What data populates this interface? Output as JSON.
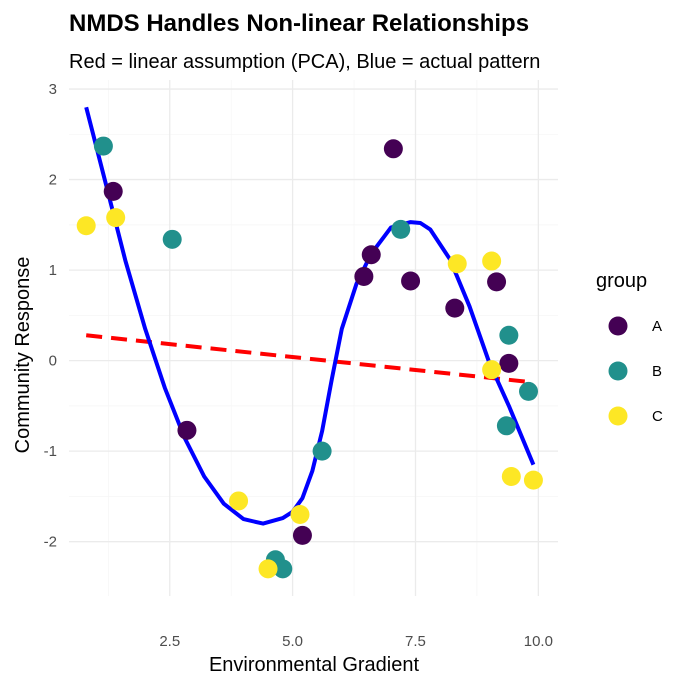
{
  "chart_data": {
    "type": "scatter",
    "title": "NMDS Handles Non-linear Relationships",
    "subtitle": "Red = linear assumption (PCA), Blue = actual pattern",
    "xlabel": "Environmental Gradient",
    "ylabel": "Community Response",
    "xlim": [
      0.45,
      10.4
    ],
    "ylim": [
      -2.6,
      3.1
    ],
    "x_ticks": [
      2.5,
      5.0,
      7.5,
      10.0
    ],
    "x_tick_labels": [
      "2.5",
      "5.0",
      "7.5",
      "10.0"
    ],
    "y_ticks": [
      -2,
      -1,
      0,
      1,
      2,
      3
    ],
    "y_tick_labels": [
      "-2",
      "-1",
      "0",
      "1",
      "2",
      "3"
    ],
    "grid": true,
    "legend": {
      "title": "group",
      "placement": "right",
      "entries": [
        {
          "label": "A",
          "color": "#440154"
        },
        {
          "label": "B",
          "color": "#21908C"
        },
        {
          "label": "C",
          "color": "#FDE725"
        }
      ]
    },
    "series": [
      {
        "name": "A",
        "color": "#440154",
        "points": [
          {
            "x": 1.35,
            "y": 1.87
          },
          {
            "x": 2.85,
            "y": -0.77
          },
          {
            "x": 5.2,
            "y": -1.93
          },
          {
            "x": 6.45,
            "y": 0.93
          },
          {
            "x": 6.6,
            "y": 1.17
          },
          {
            "x": 7.05,
            "y": 2.34
          },
          {
            "x": 7.4,
            "y": 0.88
          },
          {
            "x": 8.3,
            "y": 0.58
          },
          {
            "x": 9.15,
            "y": 0.87
          },
          {
            "x": 9.4,
            "y": -0.03
          }
        ]
      },
      {
        "name": "B",
        "color": "#21908C",
        "points": [
          {
            "x": 1.15,
            "y": 2.37
          },
          {
            "x": 2.55,
            "y": 1.34
          },
          {
            "x": 4.65,
            "y": -2.2
          },
          {
            "x": 4.8,
            "y": -2.3
          },
          {
            "x": 5.6,
            "y": -1.0
          },
          {
            "x": 7.2,
            "y": 1.45
          },
          {
            "x": 9.35,
            "y": -0.72
          },
          {
            "x": 9.4,
            "y": 0.28
          },
          {
            "x": 9.8,
            "y": -0.34
          }
        ]
      },
      {
        "name": "C",
        "color": "#FDE725",
        "points": [
          {
            "x": 0.8,
            "y": 1.49
          },
          {
            "x": 1.4,
            "y": 1.58
          },
          {
            "x": 3.9,
            "y": -1.55
          },
          {
            "x": 4.5,
            "y": -2.3
          },
          {
            "x": 5.15,
            "y": -1.7
          },
          {
            "x": 8.35,
            "y": 1.07
          },
          {
            "x": 9.05,
            "y": 1.1
          },
          {
            "x": 9.05,
            "y": -0.1
          },
          {
            "x": 9.45,
            "y": -1.28
          },
          {
            "x": 9.9,
            "y": -1.32
          }
        ]
      }
    ],
    "lines": [
      {
        "color": "#FF0000",
        "style": "dashed",
        "x": [
          0.8,
          9.9
        ],
        "y": [
          0.28,
          -0.24
        ]
      },
      {
        "color": "#0000FF",
        "style": "solid",
        "x": [
          0.8,
          1.2,
          1.6,
          2.0,
          2.4,
          2.8,
          3.2,
          3.6,
          4.0,
          4.4,
          4.8,
          5.0,
          5.2,
          5.4,
          5.6,
          5.8,
          6.0,
          6.3,
          6.6,
          7.0,
          7.4,
          7.6,
          7.8,
          8.2,
          8.6,
          9.0,
          9.4,
          9.9
        ],
        "y": [
          2.8,
          1.95,
          1.1,
          0.35,
          -0.3,
          -0.85,
          -1.28,
          -1.58,
          -1.75,
          -1.8,
          -1.74,
          -1.67,
          -1.52,
          -1.22,
          -0.78,
          -0.2,
          0.35,
          0.85,
          1.18,
          1.47,
          1.53,
          1.52,
          1.45,
          1.12,
          0.6,
          -0.02,
          -0.5,
          -1.15
        ]
      }
    ]
  }
}
